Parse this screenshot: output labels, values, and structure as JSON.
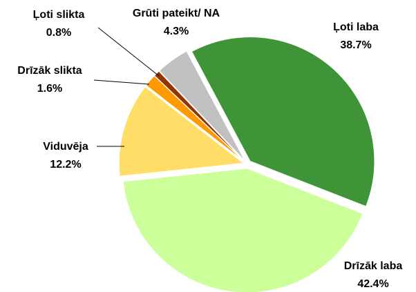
{
  "chart_data": {
    "type": "pie",
    "categories": [
      "Ļoti laba",
      "Drīzāk laba",
      "Viduvēja",
      "Drīzāk slikta",
      "Ļoti slikta",
      "Grūti pateikt/ NA"
    ],
    "values": [
      38.7,
      42.4,
      12.2,
      1.6,
      0.8,
      4.3
    ],
    "value_labels": [
      "38.7%",
      "42.4%",
      "12.2%",
      "1.6%",
      "0.8%",
      "4.3%"
    ],
    "colors": [
      "#3f9437",
      "#ccff99",
      "#ffdd66",
      "#ff9900",
      "#993300",
      "#c0c0c0"
    ]
  }
}
